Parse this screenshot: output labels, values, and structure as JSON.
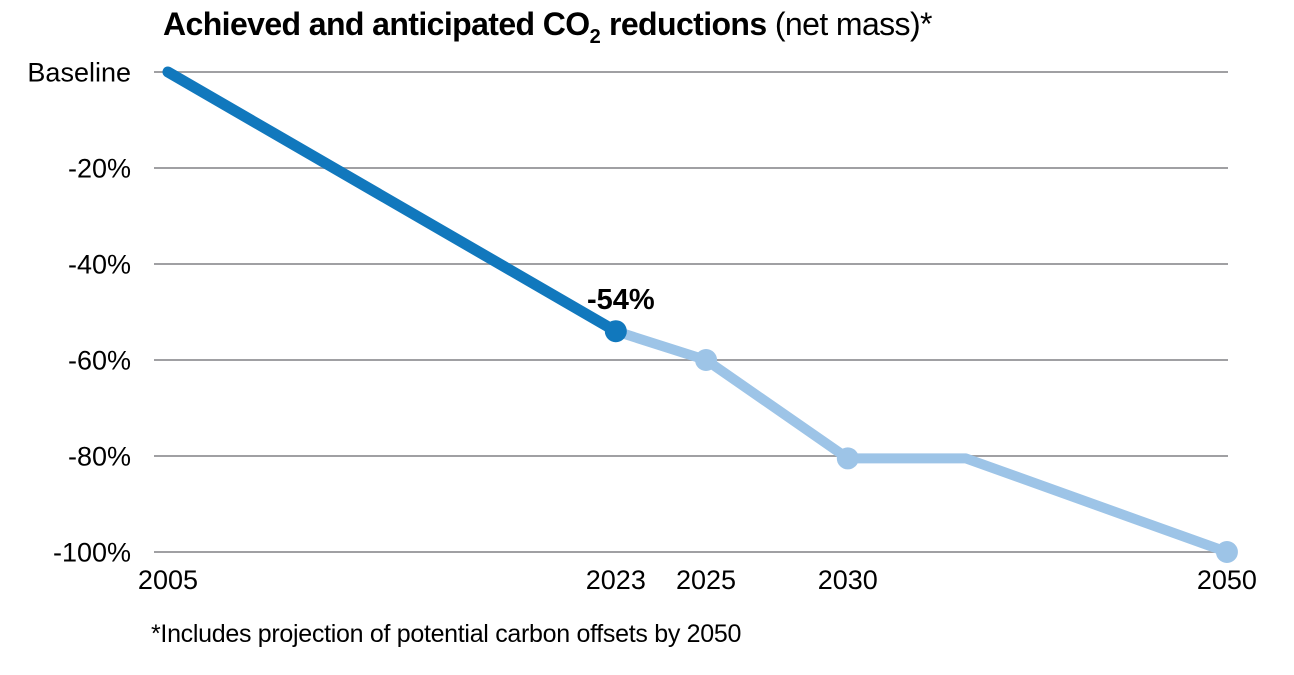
{
  "title": {
    "main": "Achieved and anticipated CO",
    "subscript": "2",
    "main_after": " reductions",
    "secondary": " (net mass)*"
  },
  "chart_data": {
    "type": "line",
    "title": "Achieved and anticipated CO2 reductions (net mass)*",
    "footnote": "*Includes projection of potential carbon offsets by 2050",
    "ylim": [
      -100,
      0
    ],
    "grid": true,
    "legend_position": "none",
    "colors": {
      "achieved": "#1178BD",
      "anticipated": "#9DC4E7",
      "gridline": "#A0A0A3",
      "text": "#000000"
    },
    "yticks": [
      {
        "value": 0,
        "label": "Baseline"
      },
      {
        "value": -20,
        "label": "-20%"
      },
      {
        "value": -40,
        "label": "-40%"
      },
      {
        "value": -60,
        "label": "-60%"
      },
      {
        "value": -80,
        "label": "-80%"
      },
      {
        "value": -100,
        "label": "-100%"
      }
    ],
    "series": [
      {
        "name": "achieved",
        "color": "#1178BD",
        "line_width": 11,
        "points": [
          {
            "label": "2005",
            "value": 0,
            "x_frac": 0.013,
            "marker": false
          },
          {
            "label": "2023",
            "value": -54,
            "x_frac": 0.43,
            "marker": true,
            "data_label": "-54%"
          }
        ]
      },
      {
        "name": "anticipated",
        "color": "#9DC4E7",
        "line_width": 10,
        "points": [
          {
            "label": "",
            "value": -54,
            "x_frac": 0.43,
            "marker": false
          },
          {
            "label": "2025",
            "value": -60,
            "x_frac": 0.514,
            "marker": true
          },
          {
            "label": "2030",
            "value": -80.5,
            "x_frac": 0.646,
            "marker": true
          },
          {
            "label": "",
            "value": -80.5,
            "x_frac": 0.756,
            "marker": false
          },
          {
            "label": "2050",
            "value": -100,
            "x_frac": 0.999,
            "marker": true
          }
        ]
      }
    ]
  }
}
